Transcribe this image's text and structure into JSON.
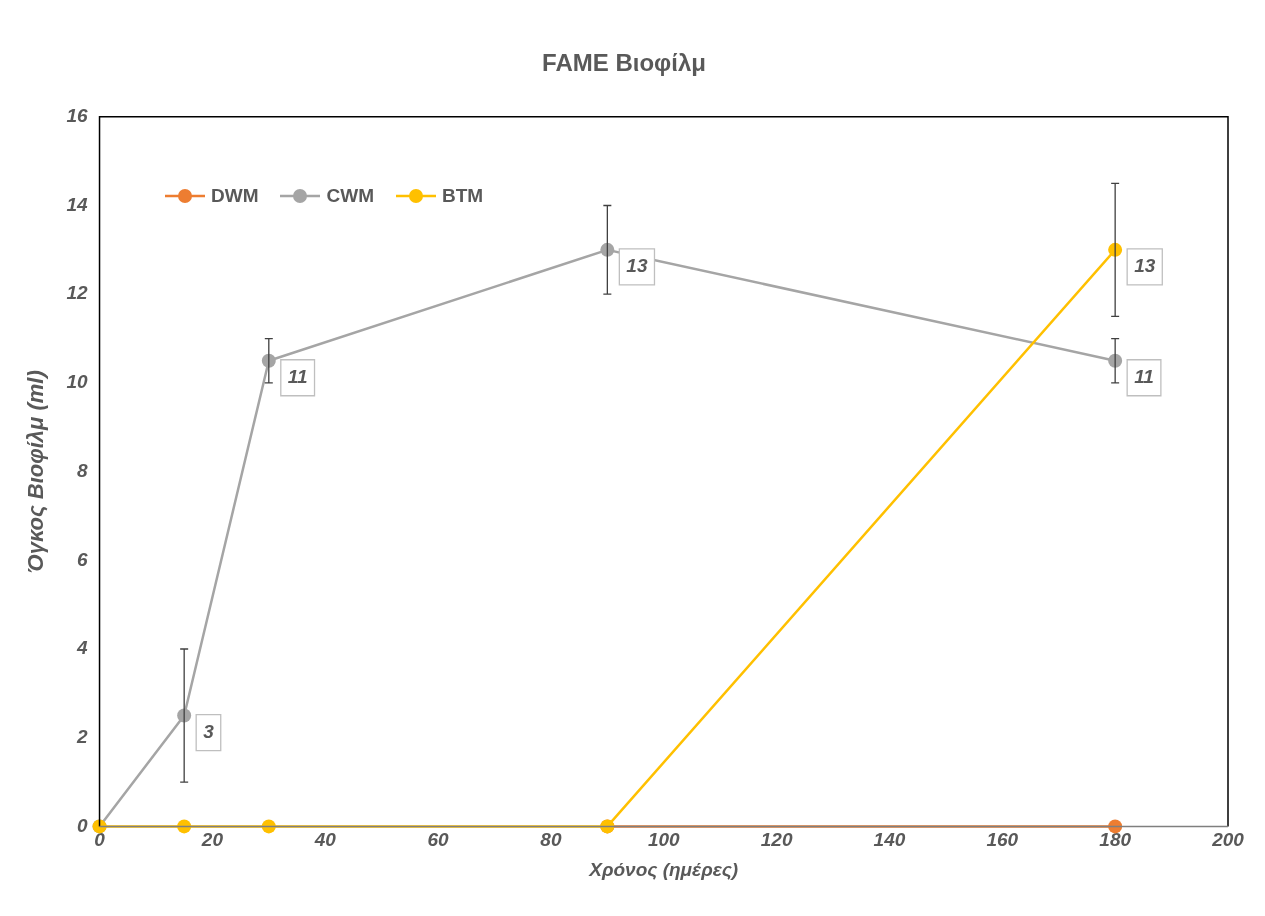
{
  "chart_data": {
    "type": "line",
    "title": "FAME Βιοφίλμ",
    "xlabel": "Χρόνος (ημέρες)",
    "ylabel": "Όγκος Βιοφίλμ (ml)",
    "xlim": [
      0,
      200
    ],
    "xticks": [
      0,
      20,
      40,
      60,
      80,
      100,
      120,
      140,
      160,
      180,
      200
    ],
    "ylim": [
      0,
      16
    ],
    "yticks": [
      0,
      2,
      4,
      6,
      8,
      10,
      12,
      14,
      16
    ],
    "grid": false,
    "legend": "top left",
    "marker": "circle",
    "line_style": "solid",
    "series": [
      {
        "name": "DWM",
        "color": "#ed7d31",
        "x": [
          90,
          180
        ],
        "values": [
          0,
          0
        ]
      },
      {
        "name": "CWM",
        "color": "#a5a5a5",
        "x": [
          0,
          15,
          30,
          90,
          180
        ],
        "values": [
          0,
          2.5,
          10.5,
          13,
          10.5
        ],
        "errors": [
          null,
          1.5,
          0.5,
          1,
          0.5
        ],
        "value_labels": [
          null,
          "3",
          "11",
          "13",
          "11"
        ]
      },
      {
        "name": "BTM",
        "color": "#ffc000",
        "x": [
          0,
          15,
          30,
          90,
          180
        ],
        "values": [
          0,
          0,
          0,
          0,
          13
        ],
        "errors": [
          null,
          null,
          null,
          null,
          1.5
        ],
        "value_labels": [
          null,
          null,
          null,
          null,
          "13"
        ]
      }
    ]
  }
}
